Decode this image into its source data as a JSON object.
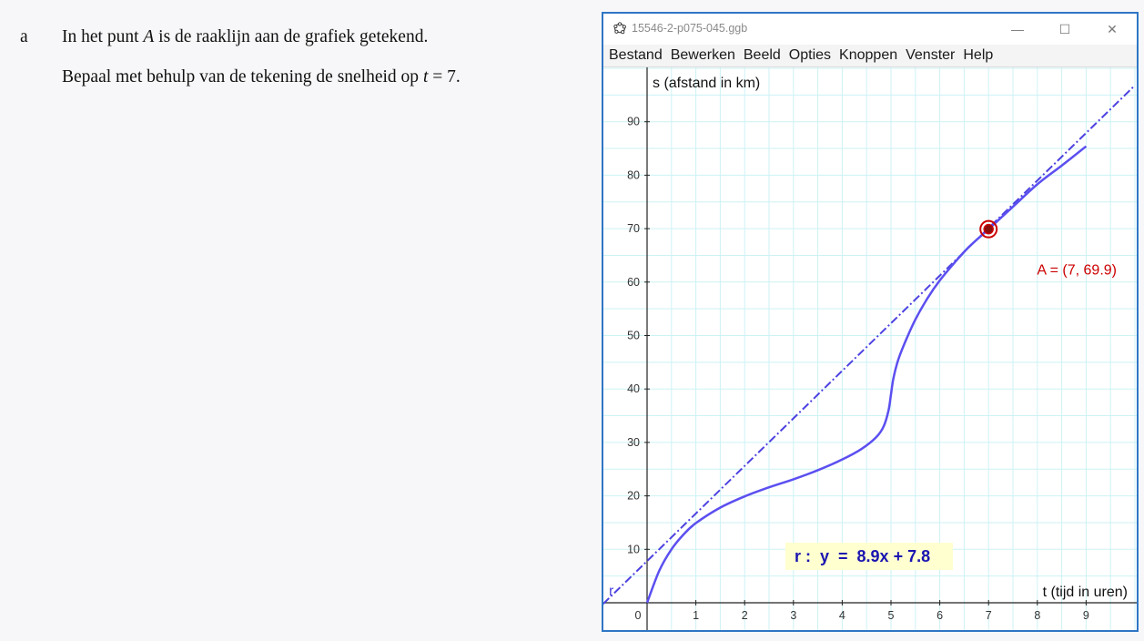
{
  "question": {
    "letter": "a",
    "line1_pre": "In het punt ",
    "line1_var": "A",
    "line1_post": " is de raaklijn aan de grafiek getekend.",
    "line2_pre": "Bepaal met behulp van de tekening de snelheid op ",
    "line2_var": "t",
    "line2_post": " = 7."
  },
  "window": {
    "title": "15546-2-p075-045.ggb",
    "app_icon": "geogebra-icon",
    "controls": {
      "minimize": "—",
      "maximize": "☐",
      "close": "✕"
    },
    "menu": [
      "Bestand",
      "Bewerken",
      "Beeld",
      "Opties",
      "Knoppen",
      "Venster",
      "Help"
    ]
  },
  "graph": {
    "y_axis_label": "s (afstand in km)",
    "x_axis_label": "t (tijd in uren)",
    "x_ticks": [
      0,
      1,
      2,
      3,
      4,
      5,
      6,
      7,
      8,
      9
    ],
    "y_ticks": [
      10,
      20,
      30,
      40,
      50,
      60,
      70,
      80,
      90
    ],
    "xlim": [
      -0.7,
      10
    ],
    "ylim": [
      0,
      100
    ],
    "point_label": "A = (7, 69.9)",
    "point": {
      "x": 7,
      "y": 69.9
    },
    "tangent_label": "r :  y  =  8.9x + 7.8",
    "tangent_name": "r",
    "tangent": {
      "slope": 8.9,
      "intercept": 7.8
    },
    "curve_points": [
      [
        0,
        0
      ],
      [
        0.25,
        6
      ],
      [
        0.5,
        10
      ],
      [
        0.75,
        12.8
      ],
      [
        1,
        14.9
      ],
      [
        1.5,
        17.8
      ],
      [
        2,
        19.9
      ],
      [
        2.5,
        21.6
      ],
      [
        3,
        23.1
      ],
      [
        3.5,
        24.8
      ],
      [
        4,
        26.8
      ],
      [
        4.4,
        28.8
      ],
      [
        4.7,
        31
      ],
      [
        4.85,
        33
      ],
      [
        4.95,
        36
      ],
      [
        5,
        39
      ],
      [
        5.05,
        42
      ],
      [
        5.15,
        45.5
      ],
      [
        5.3,
        49
      ],
      [
        5.5,
        53
      ],
      [
        5.75,
        57
      ],
      [
        6,
        60.3
      ],
      [
        6.3,
        63.6
      ],
      [
        6.6,
        66.6
      ],
      [
        7,
        69.9
      ],
      [
        7.5,
        74.1
      ],
      [
        8,
        78.3
      ],
      [
        8.5,
        81.8
      ],
      [
        9,
        85.4
      ]
    ],
    "colors": {
      "curve": "#5b4ff0",
      "tangent": "#4d42e0",
      "point": "#cc0000",
      "point_label": "#cc0000",
      "grid": "#cdf2f4",
      "tangent_label": "#1a14b0",
      "label_bg": "#ffffd0"
    }
  }
}
